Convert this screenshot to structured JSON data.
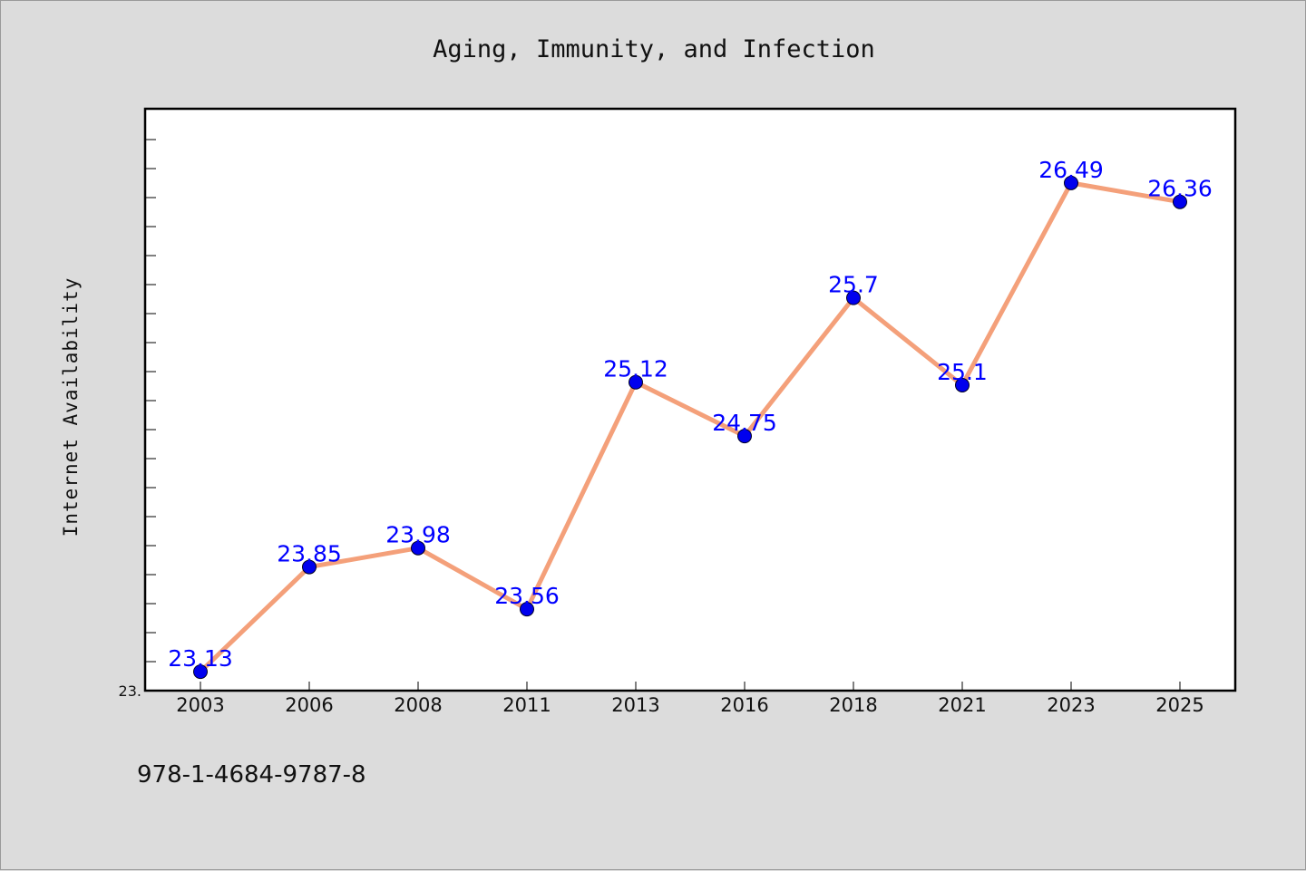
{
  "chart_data": {
    "type": "line",
    "title": "Aging, Immunity, and Infection",
    "xlabel": "",
    "ylabel": "Internet Availability",
    "categories": [
      "2003",
      "2006",
      "2008",
      "2011",
      "2013",
      "2016",
      "2018",
      "2021",
      "2023",
      "2025"
    ],
    "series": [
      {
        "values": [
          23.13,
          23.85,
          23.98,
          23.56,
          25.12,
          24.75,
          25.7,
          25.1,
          26.49,
          26.36
        ]
      }
    ],
    "data_labels": [
      "23.13",
      "23.85",
      "23.98",
      "23.56",
      "25.12",
      "24.75",
      "25.7",
      "25.1",
      "26.49",
      "26.36"
    ],
    "ylim": [
      23.0,
      27.0
    ],
    "y_tick_labels": [
      "23."
    ],
    "grid": false,
    "legend": false,
    "colors": {
      "line": "#f4a07a",
      "marker": "#0000ee",
      "label": "#0000ff",
      "background": "#dcdcdc",
      "plot_background": "#ffffff"
    }
  },
  "footer": {
    "isbn": "978-1-4684-9787-8"
  }
}
